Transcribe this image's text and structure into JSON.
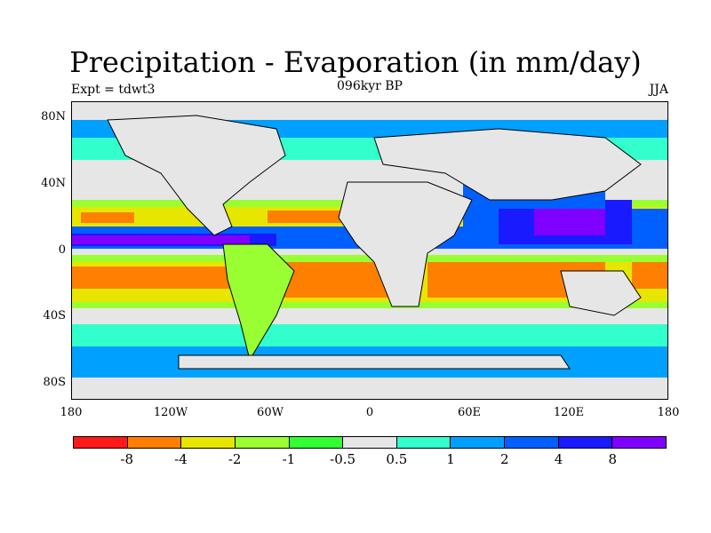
{
  "title": "Precipitation - Evaporation (in mm/day)",
  "subtitle": "096kyr BP",
  "experiment": "Expt = tdwt3",
  "season": "JJA",
  "lat_labels": [
    "80N",
    "40N",
    "0",
    "40S",
    "80S"
  ],
  "lon_labels": [
    "180",
    "120W",
    "60W",
    "0",
    "60E",
    "120E",
    "180"
  ],
  "colorbar": {
    "colors": [
      "#ff1a1a",
      "#ff8000",
      "#e6e600",
      "#99ff33",
      "#33ff33",
      "#e6e6e6",
      "#33ffcc",
      "#00a0ff",
      "#0060ff",
      "#1a1aff",
      "#8000ff"
    ],
    "labels": [
      "-8",
      "-4",
      "-2",
      "-1",
      "-0.5",
      "0.5",
      "1",
      "2",
      "4",
      "8"
    ]
  }
}
